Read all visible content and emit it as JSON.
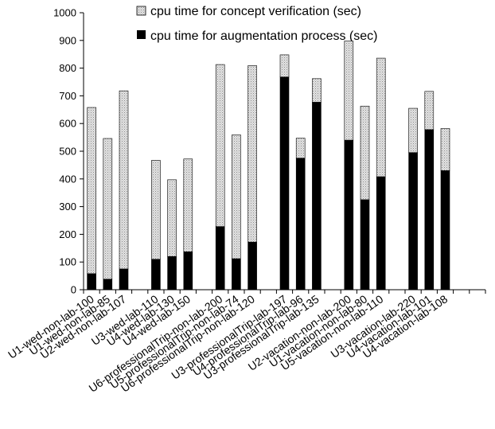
{
  "chart_data": {
    "type": "bar",
    "stacked": true,
    "title": "",
    "xlabel": "",
    "ylabel": "",
    "ylim": [
      0,
      1000
    ],
    "yticks": [
      0,
      100,
      200,
      300,
      400,
      500,
      600,
      700,
      800,
      900,
      1000
    ],
    "grid": false,
    "legend_position": "top",
    "categories": [
      "U1-wed-non-lab-100",
      "U1-wed-non-lab-85",
      "U2-wed-non-lab-107",
      "",
      "U3-wed-lab-110",
      "U4-wed-lab-130",
      "U4-wed-lab-150",
      "",
      "U6-professionalTrip-non-lab-200",
      "U5-professionalTrip-non-lab-74",
      "U6-professionalTrip-non-lab-120",
      "",
      "U3-professionalTrip-lab-197",
      "U4-professionalTrip-lab-96",
      "U3-professionalTrip-lab-135",
      "",
      "U2-vacation-non-lab-200",
      "U1-vacation-non-lab-80",
      "U5-vacation-non-lab-110",
      "",
      "U3-vacation-lab-220",
      "U4-vacation-lab-101",
      "U4-vacation-lab-108",
      "",
      ""
    ],
    "series": [
      {
        "name": "cpu time for augmentation process (sec)",
        "color": "#000000",
        "pattern": "solid",
        "values": [
          58,
          38,
          75,
          null,
          110,
          120,
          137,
          null,
          228,
          112,
          172,
          null,
          768,
          475,
          677,
          null,
          540,
          325,
          408,
          null,
          495,
          578,
          430,
          null,
          null
        ]
      },
      {
        "name": "cpu time for concept verification (sec)",
        "color": "#cfcfcf",
        "pattern": "crosshatch",
        "values": [
          600,
          508,
          643,
          null,
          357,
          277,
          335,
          null,
          585,
          447,
          637,
          null,
          80,
          72,
          85,
          null,
          358,
          338,
          428,
          null,
          160,
          138,
          152,
          null,
          null
        ]
      }
    ]
  }
}
